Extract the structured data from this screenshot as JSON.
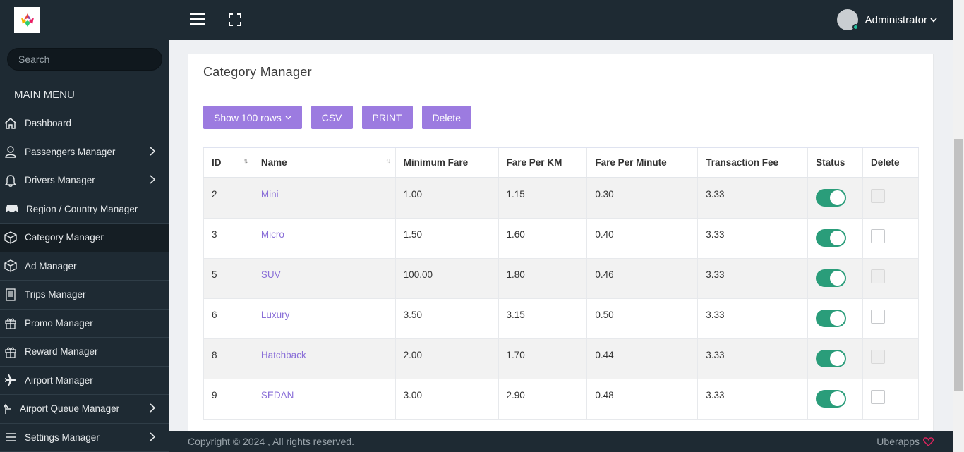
{
  "search": {
    "placeholder": "Search"
  },
  "sidebar": {
    "menu_title": "MAIN MENU",
    "items": [
      {
        "label": "Dashboard",
        "icon": "home-icon"
      },
      {
        "label": "Passengers Manager",
        "icon": "user-icon"
      },
      {
        "label": "Drivers Manager",
        "icon": "bell-icon"
      },
      {
        "label": "Region / Country Manager",
        "icon": "car-icon"
      },
      {
        "label": "Category Manager",
        "icon": "cube-icon"
      },
      {
        "label": "Ad Manager",
        "icon": "cube-icon"
      },
      {
        "label": "Trips Manager",
        "icon": "document-icon"
      },
      {
        "label": "Promo Manager",
        "icon": "gift-icon"
      },
      {
        "label": "Reward Manager",
        "icon": "gift-icon"
      },
      {
        "label": "Airport Manager",
        "icon": "airplane-icon"
      },
      {
        "label": "Airport Queue Manager",
        "icon": "arrow-up-icon"
      },
      {
        "label": "Settings Manager",
        "icon": "menu-icon"
      }
    ]
  },
  "header": {
    "user_name": "Administrator"
  },
  "main": {
    "title": "Category Manager",
    "toolbar": {
      "rows_label": "Show 100 rows",
      "csv_label": "CSV",
      "print_label": "PRINT",
      "delete_label": "Delete"
    },
    "table": {
      "headers": [
        "ID",
        "Name",
        "Minimum Fare",
        "Fare Per KM",
        "Fare Per Minute",
        "Transaction Fee",
        "Status",
        "Delete"
      ],
      "rows": [
        {
          "id": "2",
          "name": "Mini",
          "min_fare": "1.00",
          "per_km": "1.15",
          "per_min": "0.30",
          "fee": "3.33"
        },
        {
          "id": "3",
          "name": "Micro",
          "min_fare": "1.50",
          "per_km": "1.60",
          "per_min": "0.40",
          "fee": "3.33"
        },
        {
          "id": "5",
          "name": "SUV",
          "min_fare": "100.00",
          "per_km": "1.80",
          "per_min": "0.46",
          "fee": "3.33"
        },
        {
          "id": "6",
          "name": "Luxury",
          "min_fare": "3.50",
          "per_km": "3.15",
          "per_min": "0.50",
          "fee": "3.33"
        },
        {
          "id": "8",
          "name": "Hatchback",
          "min_fare": "2.00",
          "per_km": "1.70",
          "per_min": "0.44",
          "fee": "3.33"
        },
        {
          "id": "9",
          "name": "SEDAN",
          "min_fare": "3.00",
          "per_km": "2.90",
          "per_min": "0.48",
          "fee": "3.33"
        }
      ]
    }
  },
  "footer": {
    "copyright": "Copyright © 2024 , All rights reserved.",
    "brand": "Uberapps"
  },
  "colors": {
    "sidebar_bg": "#1e2a33",
    "accent": "#9c7be0",
    "toggle_on": "#2a9d7a",
    "link": "#8a6fd8",
    "heart": "#e0245e"
  }
}
